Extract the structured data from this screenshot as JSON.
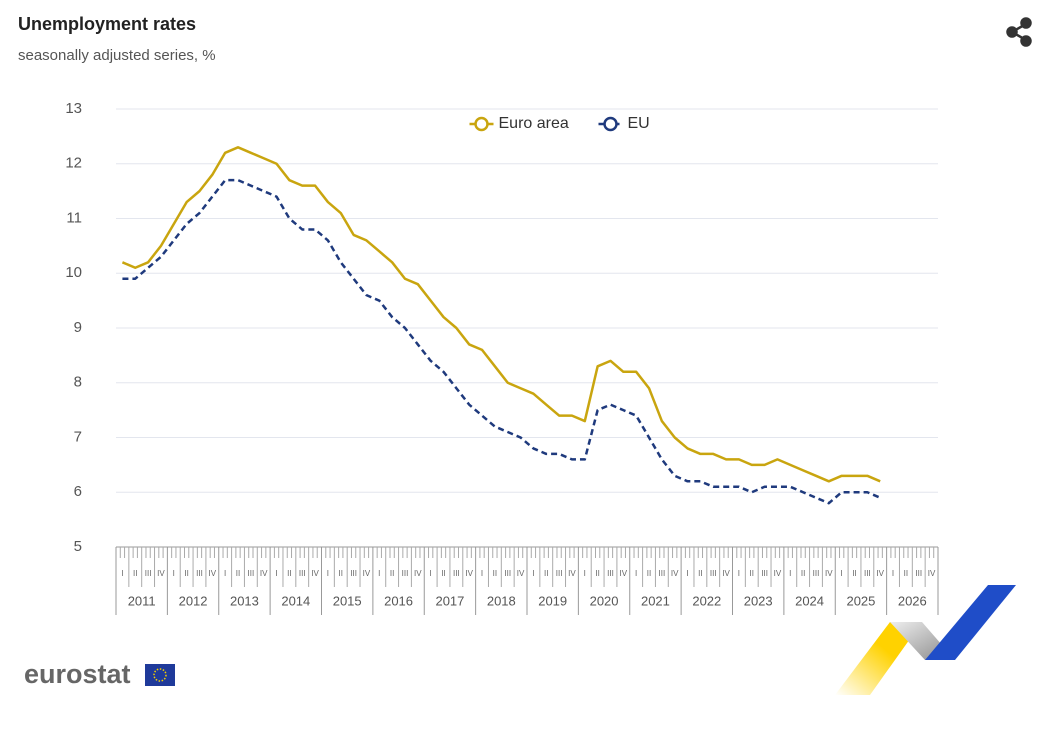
{
  "chart_data": {
    "type": "line",
    "title": "Unemployment rates",
    "subtitle": "seasonally adjusted series, %",
    "logo": "eurostat",
    "xlim": [
      2011,
      2027
    ],
    "xticks": [
      2011,
      2012,
      2013,
      2014,
      2015,
      2016,
      2017,
      2018,
      2019,
      2020,
      2021,
      2022,
      2023,
      2024,
      2025,
      2026
    ],
    "quarter_labels": [
      "I",
      "II",
      "III",
      "IV"
    ],
    "ylim": [
      5,
      13
    ],
    "yticks": [
      5,
      6,
      7,
      8,
      9,
      10,
      11,
      12,
      13
    ],
    "grid": true,
    "legend": "top",
    "x": [
      2011.125,
      2011.375,
      2011.625,
      2011.875,
      2012.125,
      2012.375,
      2012.625,
      2012.875,
      2013.125,
      2013.375,
      2013.625,
      2013.875,
      2014.125,
      2014.375,
      2014.625,
      2014.875,
      2015.125,
      2015.375,
      2015.625,
      2015.875,
      2016.125,
      2016.375,
      2016.625,
      2016.875,
      2017.125,
      2017.375,
      2017.625,
      2017.875,
      2018.125,
      2018.375,
      2018.625,
      2018.875,
      2019.125,
      2019.375,
      2019.625,
      2019.875,
      2020.125,
      2020.375,
      2020.625,
      2020.875,
      2021.125,
      2021.375,
      2021.625,
      2021.875,
      2022.125,
      2022.375,
      2022.625,
      2022.875,
      2023.125,
      2023.375,
      2023.625,
      2023.875,
      2024.125,
      2024.375,
      2024.625,
      2024.875,
      2025.125,
      2025.375,
      2025.625,
      2025.875
    ],
    "series": [
      {
        "name": "Euro area",
        "color": "#c9a50f",
        "dashed": false,
        "values": [
          10.2,
          10.1,
          10.2,
          10.5,
          10.9,
          11.3,
          11.5,
          11.8,
          12.2,
          12.3,
          12.2,
          12.1,
          12.0,
          11.7,
          11.6,
          11.6,
          11.3,
          11.1,
          10.7,
          10.6,
          10.4,
          10.2,
          9.9,
          9.8,
          9.5,
          9.2,
          9.0,
          8.7,
          8.6,
          8.3,
          8.0,
          7.9,
          7.8,
          7.6,
          7.4,
          7.4,
          7.3,
          8.3,
          8.4,
          8.2,
          8.2,
          7.9,
          7.3,
          7.0,
          6.8,
          6.7,
          6.7,
          6.6,
          6.6,
          6.5,
          6.5,
          6.6,
          6.5,
          6.4,
          6.3,
          6.2,
          6.3,
          6.3,
          6.3,
          6.2
        ]
      },
      {
        "name": "EU",
        "color": "#1f3a7d",
        "dashed": true,
        "values": [
          9.9,
          9.9,
          10.1,
          10.3,
          10.6,
          10.9,
          11.1,
          11.4,
          11.7,
          11.7,
          11.6,
          11.5,
          11.4,
          11.0,
          10.8,
          10.8,
          10.6,
          10.2,
          9.9,
          9.6,
          9.5,
          9.2,
          9.0,
          8.7,
          8.4,
          8.2,
          7.9,
          7.6,
          7.4,
          7.2,
          7.1,
          7.0,
          6.8,
          6.7,
          6.7,
          6.6,
          6.6,
          7.5,
          7.6,
          7.5,
          7.4,
          7.0,
          6.6,
          6.3,
          6.2,
          6.2,
          6.1,
          6.1,
          6.1,
          6.0,
          6.1,
          6.1,
          6.1,
          6.0,
          5.9,
          5.8,
          6.0,
          6.0,
          6.0,
          5.9
        ]
      }
    ]
  }
}
